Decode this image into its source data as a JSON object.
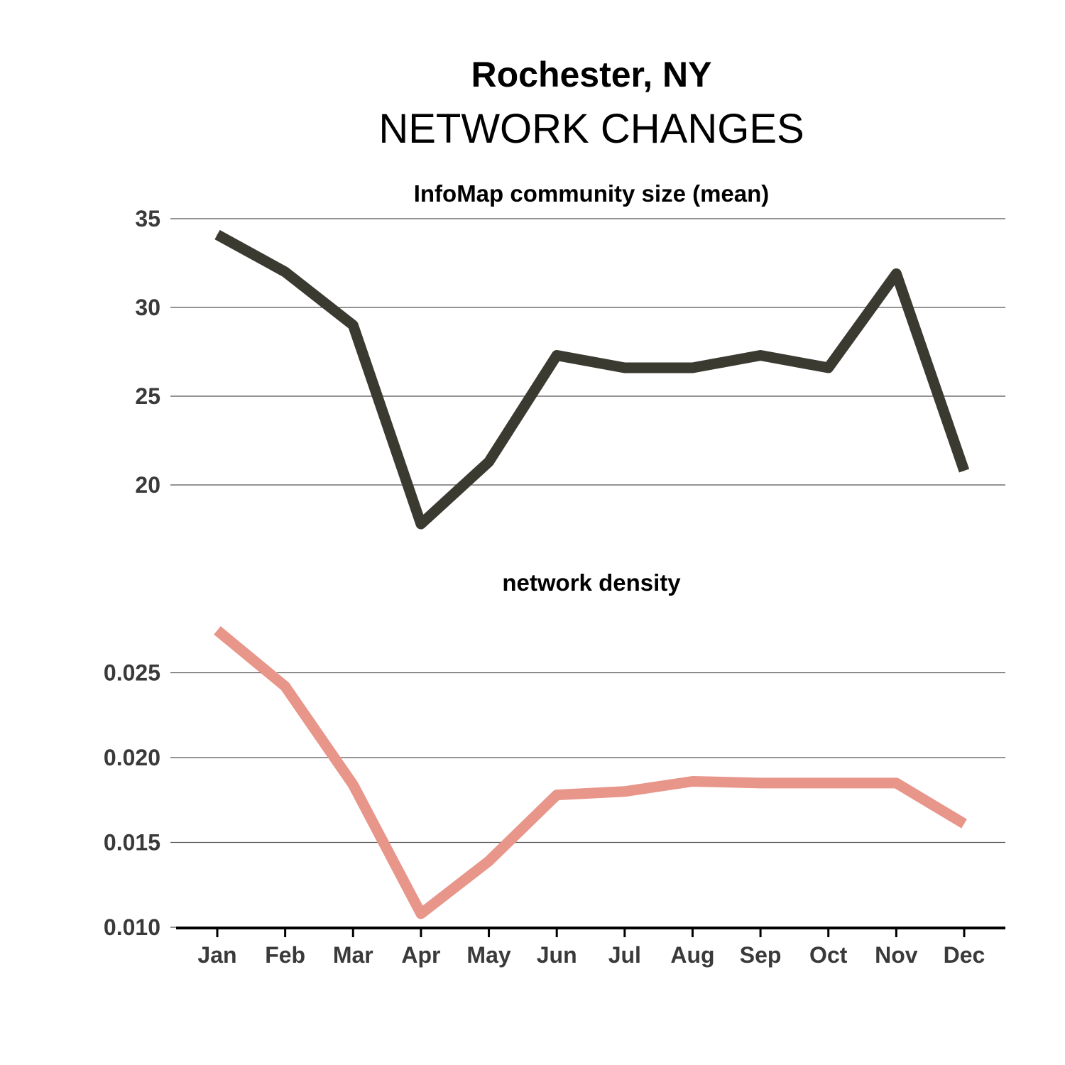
{
  "chart_data": {
    "type": "line",
    "title": "Rochester, NY",
    "subtitle": "NETWORK CHANGES",
    "categories": [
      "Jan",
      "Feb",
      "Mar",
      "Apr",
      "May",
      "Jun",
      "Jul",
      "Aug",
      "Sep",
      "Oct",
      "Nov",
      "Dec"
    ],
    "panels": [
      {
        "title": "InfoMap community size (mean)",
        "color": "#3b3a31",
        "ylim": [
          15.8,
          35
        ],
        "yticks": [
          20,
          25,
          30,
          35
        ],
        "ytick_labels": [
          "20",
          "25",
          "30",
          "35"
        ],
        "grid": true,
        "values": [
          34.1,
          32.0,
          29.0,
          17.8,
          21.3,
          27.3,
          26.6,
          26.6,
          27.3,
          26.6,
          31.9,
          20.8
        ]
      },
      {
        "title": "network density",
        "color": "#e8958a",
        "ylim": [
          0.01,
          0.0295
        ],
        "yticks": [
          0.01,
          0.015,
          0.02,
          0.025
        ],
        "ytick_labels": [
          "0.010",
          "0.015",
          "0.020",
          "0.025"
        ],
        "grid": true,
        "values": [
          0.0275,
          0.0242,
          0.0184,
          0.0108,
          0.0139,
          0.0178,
          0.018,
          0.0186,
          0.0185,
          0.0185,
          0.0185,
          0.0161
        ]
      }
    ]
  }
}
